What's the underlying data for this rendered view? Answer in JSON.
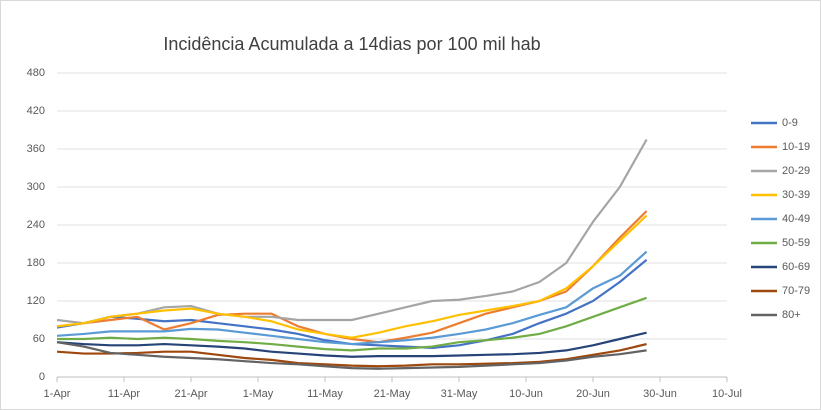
{
  "chart_data": {
    "type": "line",
    "title": "Incidência Acumulada a 14dias por 100 mil hab",
    "x": [
      0,
      4,
      8,
      12,
      16,
      20,
      24,
      28,
      32,
      36,
      40,
      44,
      48,
      52,
      56,
      60,
      64,
      68,
      72,
      76,
      80,
      84,
      88
    ],
    "xlim": [
      0,
      100
    ],
    "xticks": [
      {
        "value": 0,
        "label": "1-Apr"
      },
      {
        "value": 10,
        "label": "11-Apr"
      },
      {
        "value": 20,
        "label": "21-Apr"
      },
      {
        "value": 30,
        "label": "1-May"
      },
      {
        "value": 40,
        "label": "11-May"
      },
      {
        "value": 50,
        "label": "21-May"
      },
      {
        "value": 60,
        "label": "31-May"
      },
      {
        "value": 70,
        "label": "10-Jun"
      },
      {
        "value": 80,
        "label": "20-Jun"
      },
      {
        "value": 90,
        "label": "30-Jun"
      },
      {
        "value": 100,
        "label": "10-Jul"
      }
    ],
    "ylim": [
      0,
      480
    ],
    "yticks": [
      0,
      60,
      120,
      180,
      240,
      300,
      360,
      420,
      480
    ],
    "grid": true,
    "legend": "right",
    "series": [
      {
        "name": "0-9",
        "color": "#4472c4",
        "values": [
          78,
          85,
          95,
          92,
          88,
          90,
          85,
          80,
          75,
          68,
          58,
          52,
          50,
          48,
          46,
          50,
          58,
          68,
          85,
          100,
          120,
          150,
          185
        ]
      },
      {
        "name": "10-19",
        "color": "#ed7d31",
        "values": [
          80,
          85,
          90,
          95,
          75,
          85,
          98,
          100,
          100,
          80,
          68,
          60,
          55,
          62,
          70,
          85,
          100,
          110,
          120,
          135,
          175,
          220,
          262
        ]
      },
      {
        "name": "20-29",
        "color": "#a5a5a5",
        "values": [
          90,
          85,
          95,
          100,
          110,
          112,
          100,
          95,
          95,
          90,
          90,
          90,
          100,
          110,
          120,
          122,
          128,
          135,
          150,
          180,
          245,
          300,
          375
        ]
      },
      {
        "name": "30-39",
        "color": "#ffc000",
        "values": [
          80,
          85,
          95,
          100,
          105,
          108,
          100,
          95,
          88,
          75,
          68,
          62,
          70,
          80,
          88,
          98,
          105,
          112,
          120,
          140,
          175,
          215,
          255
        ]
      },
      {
        "name": "40-49",
        "color": "#5b9bd5",
        "values": [
          65,
          68,
          72,
          72,
          72,
          76,
          75,
          70,
          65,
          60,
          55,
          52,
          55,
          58,
          62,
          68,
          75,
          85,
          98,
          110,
          140,
          160,
          198
        ]
      },
      {
        "name": "50-59",
        "color": "#70ad47",
        "values": [
          60,
          60,
          62,
          60,
          62,
          60,
          57,
          55,
          52,
          48,
          44,
          42,
          45,
          45,
          48,
          55,
          58,
          62,
          68,
          80,
          95,
          110,
          125
        ]
      },
      {
        "name": "60-69",
        "color": "#264478",
        "values": [
          55,
          52,
          50,
          50,
          52,
          50,
          48,
          45,
          40,
          37,
          34,
          32,
          33,
          33,
          33,
          34,
          35,
          36,
          38,
          42,
          50,
          60,
          70
        ]
      },
      {
        "name": "70-79",
        "color": "#9e480e",
        "values": [
          40,
          37,
          37,
          38,
          40,
          40,
          35,
          30,
          27,
          22,
          20,
          18,
          17,
          18,
          20,
          20,
          21,
          22,
          24,
          28,
          35,
          42,
          52
        ]
      },
      {
        "name": "80+",
        "color": "#636363",
        "values": [
          55,
          48,
          38,
          35,
          32,
          30,
          28,
          25,
          22,
          20,
          17,
          14,
          13,
          14,
          15,
          16,
          18,
          20,
          22,
          26,
          32,
          36,
          42
        ]
      }
    ]
  }
}
